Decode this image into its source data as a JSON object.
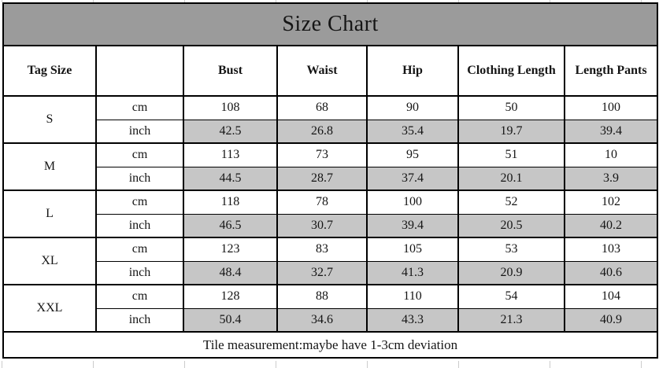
{
  "title": "Size Chart",
  "columns": [
    "Tag Size",
    "",
    "Bust",
    "Waist",
    "Hip",
    "Clothing Length",
    "Length Pants"
  ],
  "units": [
    "cm",
    "inch"
  ],
  "sizes": [
    {
      "tag": "S",
      "cm": [
        "108",
        "68",
        "90",
        "50",
        "100"
      ],
      "inch": [
        "42.5",
        "26.8",
        "35.4",
        "19.7",
        "39.4"
      ]
    },
    {
      "tag": "M",
      "cm": [
        "113",
        "73",
        "95",
        "51",
        "10"
      ],
      "inch": [
        "44.5",
        "28.7",
        "37.4",
        "20.1",
        "3.9"
      ]
    },
    {
      "tag": "L",
      "cm": [
        "118",
        "78",
        "100",
        "52",
        "102"
      ],
      "inch": [
        "46.5",
        "30.7",
        "39.4",
        "20.5",
        "40.2"
      ]
    },
    {
      "tag": "XL",
      "cm": [
        "123",
        "83",
        "105",
        "53",
        "103"
      ],
      "inch": [
        "48.4",
        "32.7",
        "41.3",
        "20.9",
        "40.6"
      ]
    },
    {
      "tag": "XXL",
      "cm": [
        "128",
        "88",
        "110",
        "54",
        "104"
      ],
      "inch": [
        "50.4",
        "34.6",
        "43.3",
        "21.3",
        "40.9"
      ]
    }
  ],
  "footer_note": "Tile measurement:maybe have 1-3cm deviation",
  "colors": {
    "header_bg": "#9b9b9b",
    "inch_row_bg": "#c6c6c6",
    "border": "#000000",
    "text": "#151515"
  }
}
